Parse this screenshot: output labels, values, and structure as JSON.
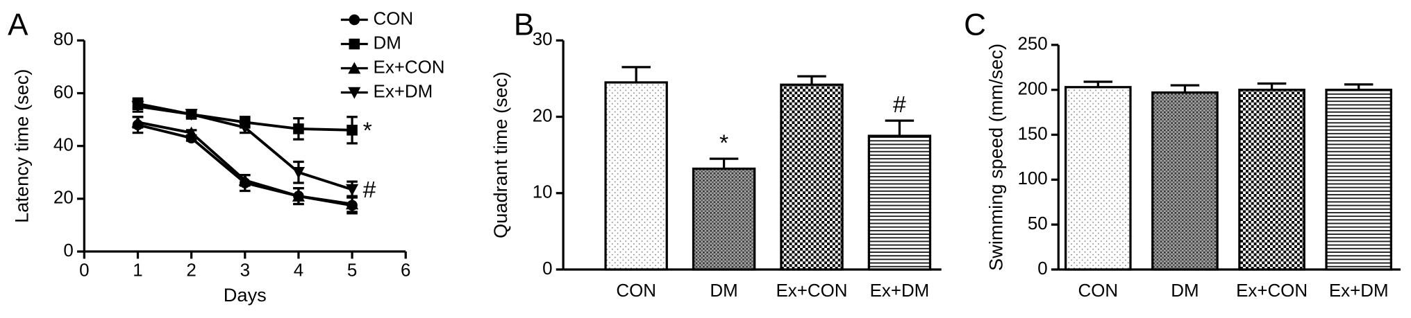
{
  "chart_data": [
    {
      "type": "line",
      "panel": "A",
      "xlabel": "Days",
      "ylabel": "Latency time (sec)",
      "x": [
        1,
        2,
        3,
        4,
        5
      ],
      "xlim": [
        0,
        6
      ],
      "xticks": [
        0,
        1,
        2,
        3,
        4,
        5,
        6
      ],
      "ylim": [
        0,
        80
      ],
      "yticks": [
        0,
        20,
        40,
        60,
        80
      ],
      "series": [
        {
          "name": "CON",
          "color": "#000000",
          "marker": "circle",
          "values": [
            48,
            43,
            26,
            21,
            17.5
          ],
          "errors": [
            3,
            1,
            3,
            3,
            3
          ]
        },
        {
          "name": "DM",
          "color": "#000000",
          "marker": "square",
          "values": [
            56,
            52,
            49,
            46.5,
            46
          ],
          "errors": [
            2,
            1,
            2,
            4,
            5
          ],
          "annotation": "*"
        },
        {
          "name": "Ex+CON",
          "color": "#000000",
          "marker": "triangle",
          "values": [
            49,
            45,
            27,
            21,
            18
          ],
          "errors": [
            2,
            1,
            2,
            3,
            3
          ]
        },
        {
          "name": "Ex+DM",
          "color": "#000000",
          "marker": "triangle-down",
          "values": [
            55,
            52,
            47,
            30,
            23.5
          ],
          "errors": [
            2,
            1,
            2,
            4,
            3
          ],
          "annotation": "#"
        }
      ]
    },
    {
      "type": "bar",
      "panel": "B",
      "ylabel": "Quadrant time (sec)",
      "categories": [
        "CON",
        "DM",
        "Ex+CON",
        "Ex+DM"
      ],
      "values": [
        24.5,
        13.2,
        24.2,
        17.5
      ],
      "errors": [
        2,
        1.3,
        1.1,
        2
      ],
      "annotations": [
        null,
        "*",
        null,
        "#"
      ],
      "patterns": [
        "dots",
        "dense",
        "checker",
        "hlines"
      ],
      "ylim": [
        0,
        30
      ],
      "yticks": [
        0,
        10,
        20,
        30
      ]
    },
    {
      "type": "bar",
      "panel": "C",
      "ylabel": "Swimming speed (mm/sec)",
      "categories": [
        "CON",
        "DM",
        "Ex+CON",
        "Ex+DM"
      ],
      "values": [
        203,
        197,
        200,
        200
      ],
      "errors": [
        6,
        8,
        7,
        6
      ],
      "patterns": [
        "dots",
        "dense",
        "checker",
        "hlines"
      ],
      "ylim": [
        0,
        250
      ],
      "yticks": [
        0,
        50,
        100,
        150,
        200,
        250
      ]
    }
  ]
}
